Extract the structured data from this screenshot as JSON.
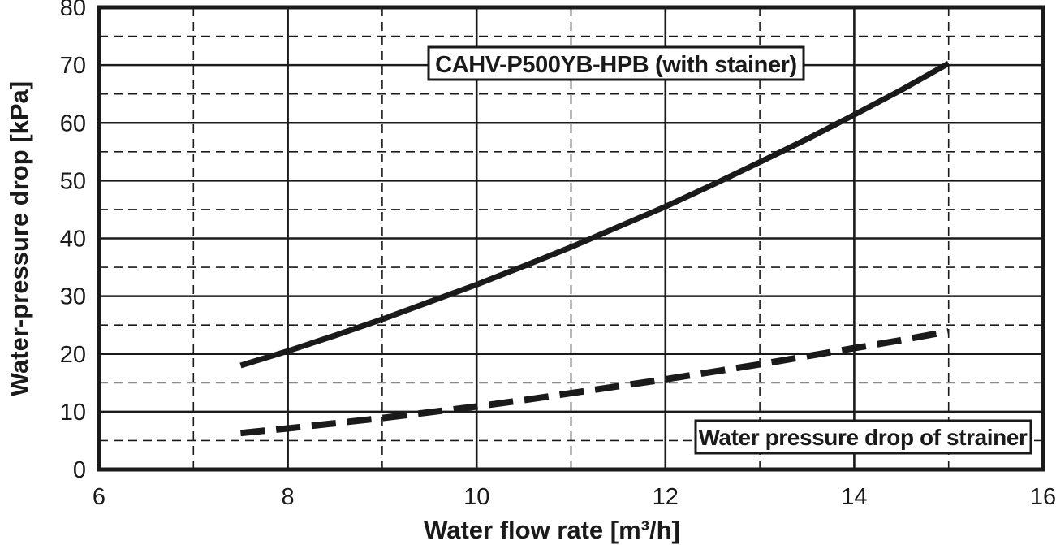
{
  "colors": {
    "ink": "#1a1a1a",
    "background": "#ffffff"
  },
  "labels": {
    "series1": "CAHV-P500YB-HPB (with stainer)",
    "series2": "Water pressure drop of strainer"
  },
  "axes": {
    "x_title": "Water flow rate [m³/h]",
    "y_title": "Water-pressure drop [kPa]"
  },
  "chart_data": {
    "type": "line",
    "title": "",
    "xlabel": "Water flow rate [m³/h]",
    "ylabel": "Water-pressure drop [kPa]",
    "xlim": [
      6,
      16
    ],
    "ylim": [
      0,
      80
    ],
    "x_major_ticks": [
      6,
      8,
      10,
      12,
      14,
      16
    ],
    "y_major_ticks": [
      0,
      10,
      20,
      30,
      40,
      50,
      60,
      70,
      80
    ],
    "x_minor_ticks": [
      7,
      9,
      11,
      13,
      15
    ],
    "y_minor_ticks": [
      5,
      15,
      25,
      35,
      45,
      55,
      65,
      75
    ],
    "grid": {
      "major": "solid",
      "minor": "dashed",
      "on": true
    },
    "legend_position": "inline-boxed-labels",
    "series": [
      {
        "name": "CAHV-P500YB-HPB (with stainer)",
        "style": "solid",
        "x": [
          7.5,
          8,
          8.5,
          9,
          9.5,
          10,
          10.5,
          11,
          11.5,
          12,
          12.5,
          13,
          13.5,
          14,
          14.5,
          15
        ],
        "y": [
          18,
          20.5,
          23.2,
          26,
          29,
          32,
          35.2,
          38.5,
          42,
          45.5,
          49.3,
          53.2,
          57.2,
          61.4,
          65.7,
          70.3
        ]
      },
      {
        "name": "Water pressure drop of strainer",
        "style": "dashed",
        "x": [
          7.5,
          8,
          8.5,
          9,
          9.5,
          10,
          10.5,
          11,
          11.5,
          12,
          12.5,
          13,
          13.5,
          14,
          14.5,
          15
        ],
        "y": [
          6.3,
          7.1,
          8.0,
          8.9,
          9.9,
          10.9,
          12.0,
          13.2,
          14.4,
          15.6,
          16.9,
          18.2,
          19.6,
          21.0,
          22.4,
          23.9
        ]
      }
    ]
  }
}
